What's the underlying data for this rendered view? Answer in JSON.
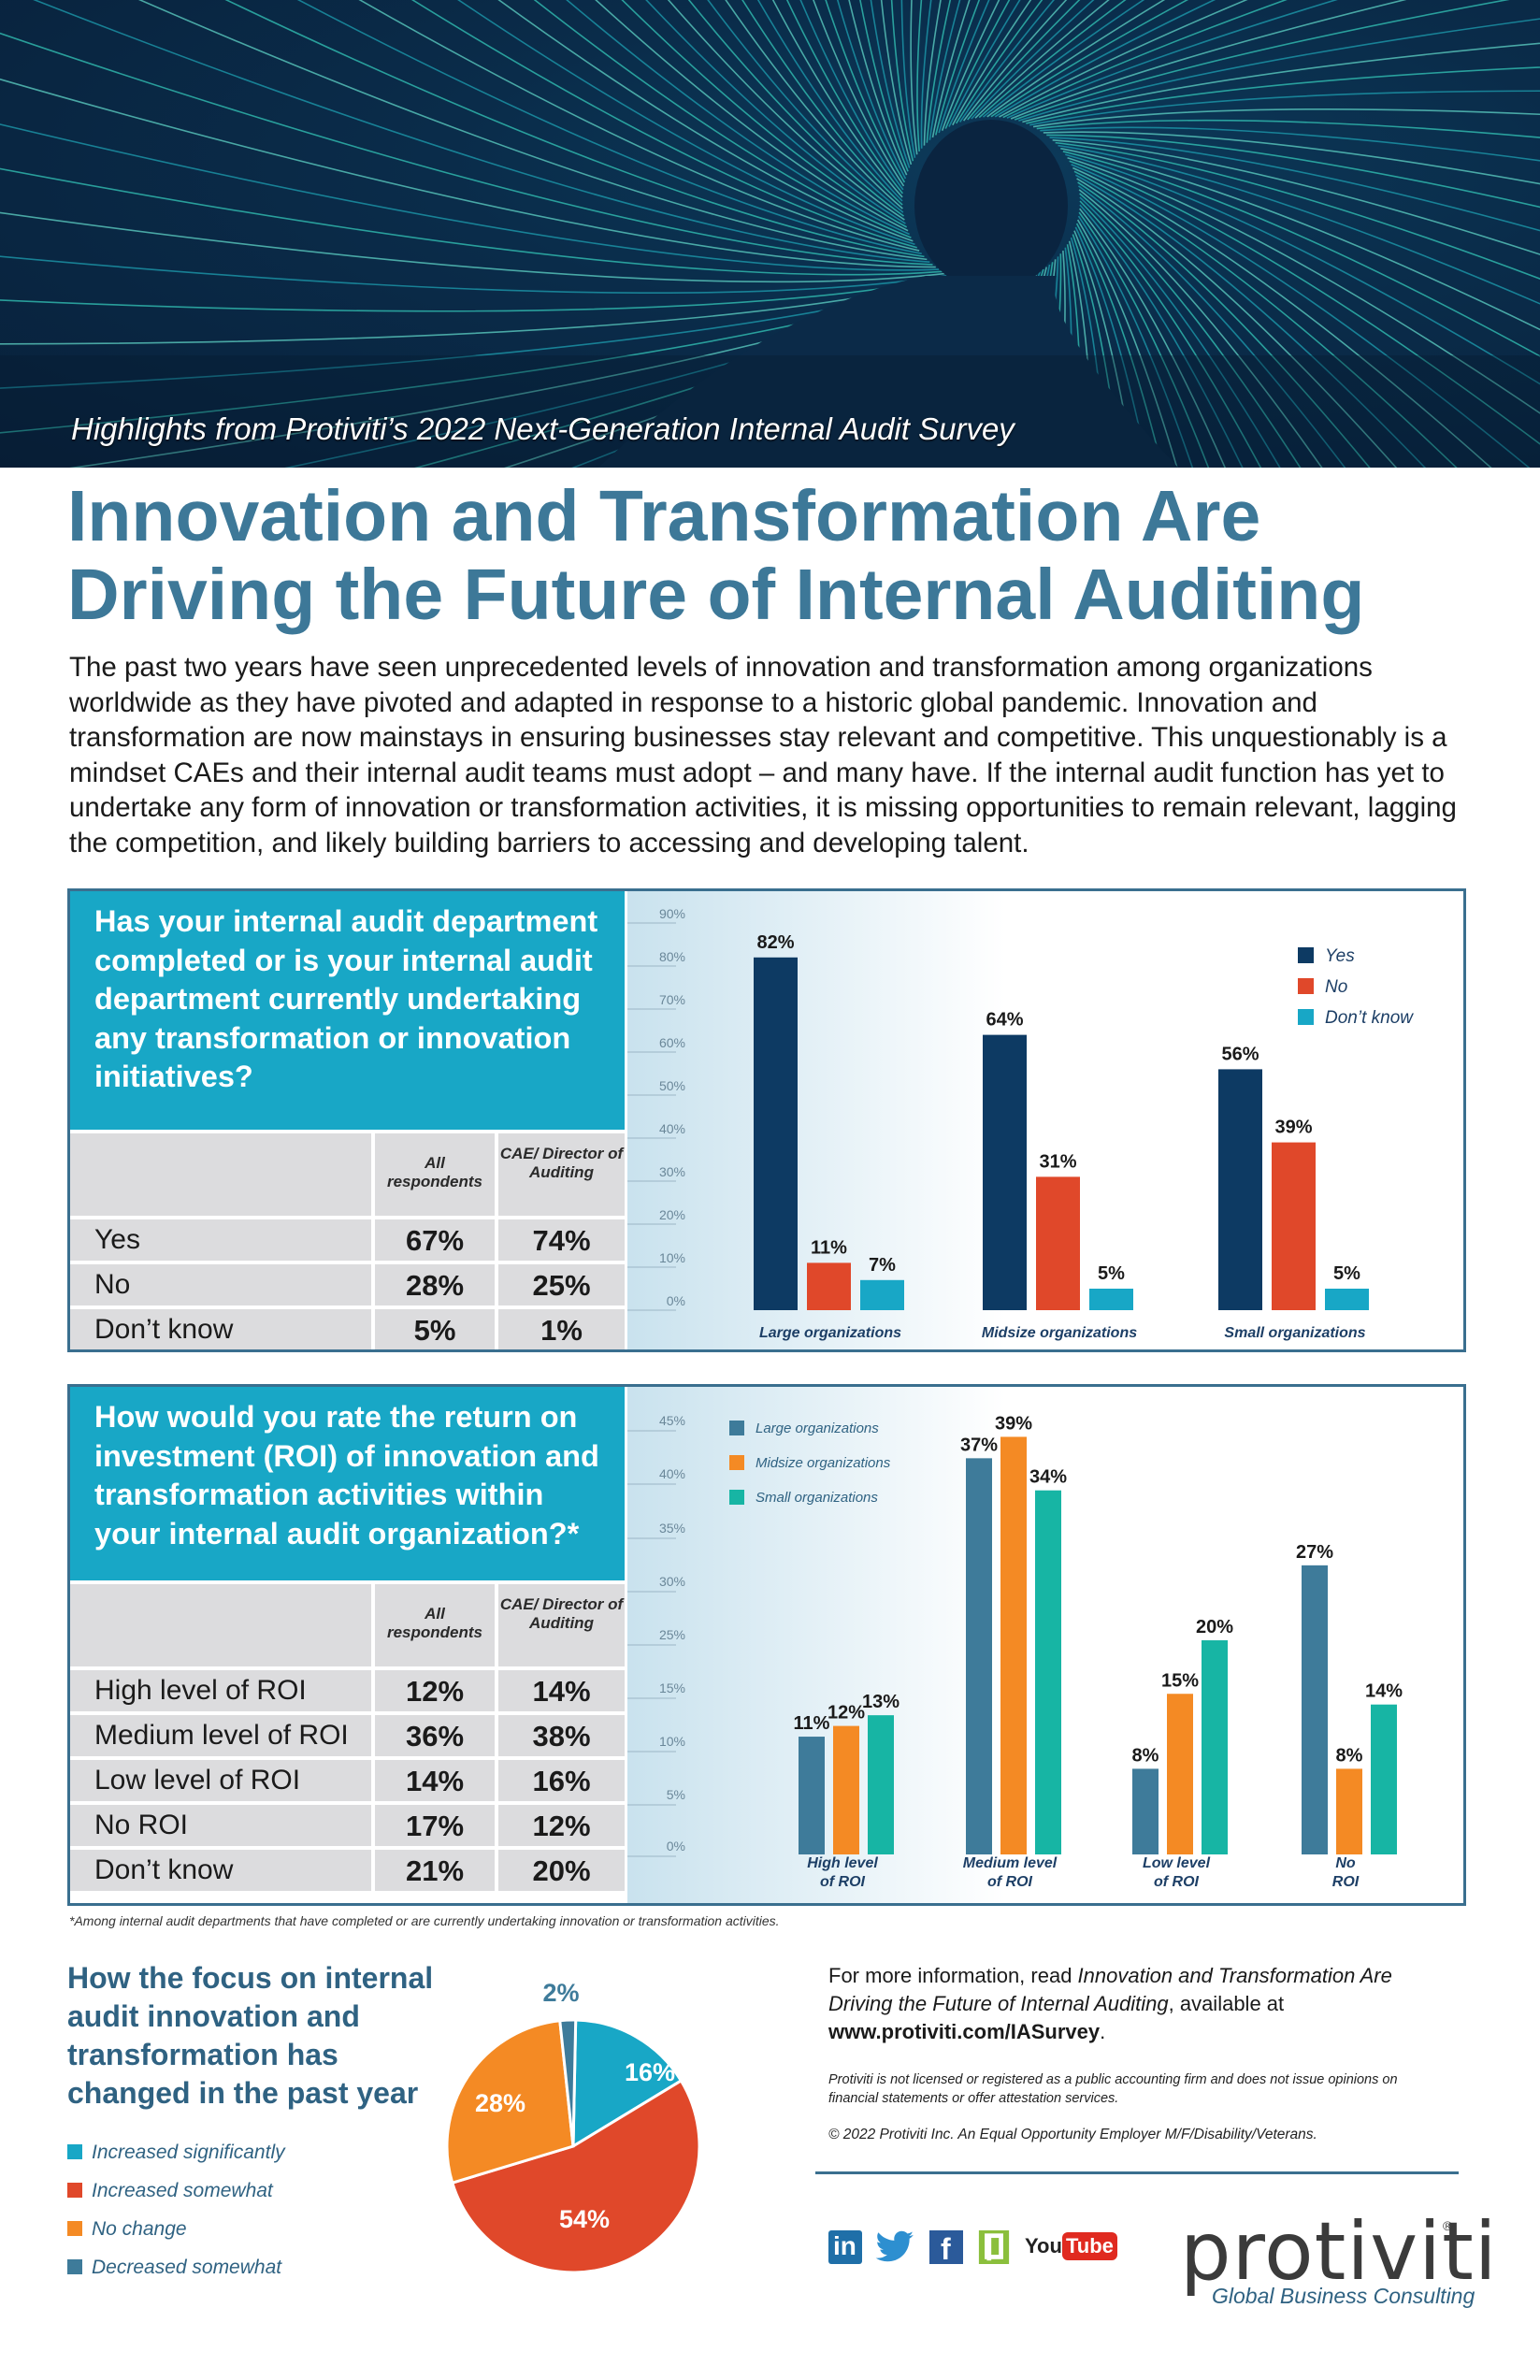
{
  "header": {
    "subtitle": "Highlights from Protiviti’s 2022 Next-Generation Internal Audit Survey",
    "title_line1": "Innovation and Transformation Are",
    "title_line2": "Driving the Future of Internal Auditing",
    "intro": "The past two years have seen unprecedented levels of innovation and transformation among organizations worldwide as they have pivoted and adapted in response to a historic global pandemic. Innovation and transformation are now mainstays in ensuring businesses stay relevant and competitive. This unquestionably is a mindset CAEs and their internal audit teams must adopt – and many have. If the internal audit function has yet to undertake any form of innovation or transformation activities, it is missing opportunities to remain relevant, lagging the competition, and likely building barriers to accessing and developing talent."
  },
  "colors": {
    "navy": "#0d3a63",
    "red": "#e0482a",
    "teal": "#18a7c6",
    "steel": "#3e7b9a",
    "orange": "#f48a24",
    "green": "#17b5a4",
    "title_blue": "#3d7898"
  },
  "panel1": {
    "question": "Has your internal audit department completed or is your internal audit department currently undertaking any transformation or innovation initiatives?",
    "col_all": "All respondents",
    "col_cae": "CAE/ Director of Auditing",
    "rows": [
      {
        "label": "Yes",
        "all": "67%",
        "cae": "74%"
      },
      {
        "label": "No",
        "all": "28%",
        "cae": "25%"
      },
      {
        "label": "Don’t know",
        "all": "5%",
        "cae": "1%"
      }
    ]
  },
  "panel2": {
    "question": "How would you rate the return on investment (ROI) of innovation and transformation activities within your internal audit organization?*",
    "col_all": "All respondents",
    "col_cae": "CAE/ Director of Auditing",
    "rows": [
      {
        "label": "High level of ROI",
        "all": "12%",
        "cae": "14%"
      },
      {
        "label": "Medium level of ROI",
        "all": "36%",
        "cae": "38%"
      },
      {
        "label": "Low level of ROI",
        "all": "14%",
        "cae": "16%"
      },
      {
        "label": "No ROI",
        "all": "17%",
        "cae": "12%"
      },
      {
        "label": "Don’t know",
        "all": "21%",
        "cae": "20%"
      }
    ]
  },
  "footnote": "*Among internal audit departments that have completed or are currently undertaking innovation or transformation activities.",
  "chart_data": [
    {
      "type": "bar",
      "categories": [
        "Large organizations",
        "Midsize organizations",
        "Small organizations"
      ],
      "series": [
        {
          "name": "Yes",
          "values": [
            82,
            64,
            56
          ]
        },
        {
          "name": "No",
          "values": [
            11,
            31,
            39
          ]
        },
        {
          "name": "Don’t know",
          "values": [
            7,
            5,
            5
          ]
        }
      ],
      "ylim": [
        0,
        90
      ],
      "yticks": [
        "0%",
        "10%",
        "20%",
        "30%",
        "40%",
        "50%",
        "60%",
        "70%",
        "80%",
        "90%"
      ],
      "legend": "top-right"
    },
    {
      "type": "bar",
      "categories": [
        [
          "High level",
          "of ROI"
        ],
        [
          "Medium level",
          "of ROI"
        ],
        [
          "Low level",
          "of ROI"
        ],
        [
          "No",
          "ROI"
        ]
      ],
      "series": [
        {
          "name": "Large organizations",
          "values": [
            11,
            37,
            8,
            27
          ]
        },
        {
          "name": "Midsize organizations",
          "values": [
            12,
            39,
            15,
            8
          ]
        },
        {
          "name": "Small organizations",
          "values": [
            13,
            34,
            20,
            14
          ]
        }
      ],
      "ylim": [
        0,
        45
      ],
      "yticks": [
        "0%",
        "5%",
        "10%",
        "15%",
        "25%",
        "30%",
        "35%",
        "40%",
        "45%"
      ],
      "legend": "top-left"
    },
    {
      "type": "pie",
      "title": "How the focus on internal audit innovation and transformation has changed in the past year",
      "slices": [
        {
          "name": "Increased significantly",
          "value": 16
        },
        {
          "name": "Increased somewhat",
          "value": 54
        },
        {
          "name": "No change",
          "value": 28
        },
        {
          "name": "Decreased somewhat",
          "value": 2
        }
      ]
    }
  ],
  "info": {
    "lead": "For more information, read ",
    "report": "Innovation and Transformation Are Driving the Future of Internal Auditing",
    "mid": ", available at",
    "url": "www.protiviti.com/IASurvey",
    "end": ".",
    "disclaimer": "Protiviti is not licensed or registered as a public accounting firm and does not issue opinions on financial statements or offer attestation services.",
    "copyright": "© 2022 Protiviti Inc. An Equal Opportunity Employer    M/F/Disability/Veterans."
  },
  "social": {
    "linkedin": "in",
    "facebook": "f",
    "youtube_you": "You",
    "youtube_tube": "Tube"
  },
  "logo": {
    "word": "protiviti",
    "reg": "®",
    "tagline": "Global Business Consulting"
  }
}
